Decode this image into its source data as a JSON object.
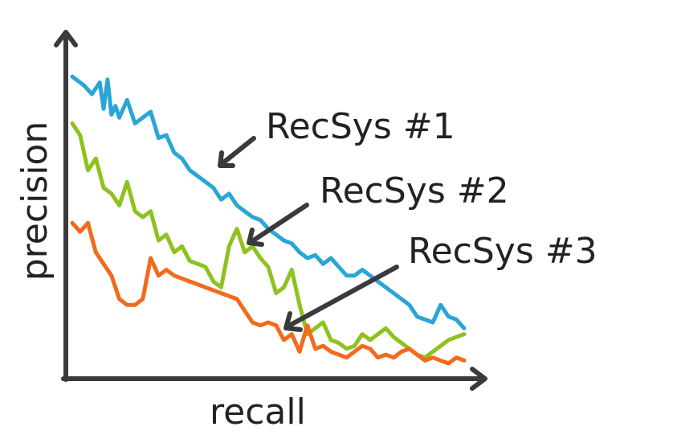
{
  "chart_data": {
    "type": "line",
    "title": "",
    "xlabel": "recall",
    "ylabel": "precision",
    "xlim": [
      0,
      100
    ],
    "ylim": [
      0,
      100
    ],
    "grid": false,
    "axis_ticks": false,
    "series": [
      {
        "name": "RecSys #1",
        "color": "#2aa6d6",
        "x": [
          0,
          3,
          5,
          7,
          8,
          9,
          10,
          11,
          12,
          14,
          16,
          18,
          20,
          22,
          24,
          26,
          28,
          30,
          32,
          34,
          36,
          38,
          40,
          42,
          44,
          46,
          48,
          50,
          52,
          54,
          56,
          58,
          60,
          62,
          64,
          66,
          68,
          70,
          72,
          74,
          76,
          78,
          80,
          82,
          84,
          86,
          88,
          90,
          92,
          94,
          96,
          98,
          100
        ],
        "y": [
          98,
          95,
          92,
          96,
          87,
          97,
          85,
          88,
          84,
          90,
          82,
          84,
          86,
          77,
          78,
          72,
          70,
          66,
          64,
          62,
          60,
          56,
          58,
          54,
          52,
          50,
          49,
          46,
          44,
          42,
          41,
          38,
          36,
          37,
          34,
          36,
          33,
          30,
          30,
          32,
          30,
          28,
          26,
          24,
          22,
          20,
          16,
          15,
          14,
          20,
          16,
          15,
          12
        ]
      },
      {
        "name": "RecSys #2",
        "color": "#8dc21f",
        "x": [
          0,
          2,
          4,
          6,
          8,
          10,
          12,
          14,
          16,
          18,
          20,
          22,
          24,
          26,
          28,
          30,
          32,
          34,
          36,
          38,
          40,
          42,
          44,
          46,
          48,
          50,
          52,
          54,
          56,
          58,
          60,
          62,
          64,
          66,
          68,
          70,
          72,
          74,
          76,
          78,
          80,
          82,
          84,
          86,
          88,
          90,
          92,
          94,
          96,
          98,
          100
        ],
        "y": [
          82,
          78,
          66,
          70,
          60,
          58,
          54,
          62,
          52,
          50,
          52,
          42,
          44,
          38,
          40,
          35,
          34,
          33,
          28,
          26,
          40,
          46,
          38,
          40,
          36,
          33,
          24,
          26,
          32,
          20,
          10,
          12,
          14,
          8,
          7,
          5,
          6,
          10,
          8,
          10,
          12,
          9,
          7,
          5,
          3,
          2,
          4,
          6,
          8,
          9,
          10
        ]
      },
      {
        "name": "RecSys #3",
        "color": "#f26b1d",
        "x": [
          0,
          2,
          4,
          6,
          8,
          10,
          12,
          14,
          16,
          18,
          20,
          22,
          24,
          26,
          28,
          30,
          32,
          34,
          36,
          38,
          40,
          42,
          44,
          46,
          48,
          50,
          52,
          54,
          56,
          58,
          60,
          62,
          64,
          66,
          68,
          70,
          72,
          74,
          76,
          78,
          80,
          82,
          84,
          86,
          88,
          90,
          92,
          94,
          96,
          98,
          100
        ],
        "y": [
          48,
          45,
          48,
          38,
          34,
          30,
          22,
          20,
          20,
          22,
          36,
          30,
          32,
          30,
          29,
          28,
          27,
          26,
          25,
          24,
          23,
          22,
          18,
          14,
          13,
          14,
          13,
          8,
          10,
          4,
          13,
          5,
          6,
          4,
          3,
          2,
          4,
          6,
          5,
          2,
          3,
          2,
          4,
          5,
          3,
          1,
          2,
          1,
          0,
          2,
          1
        ]
      }
    ],
    "annotations": [
      {
        "text": "RecSys #1",
        "points_to_series": 0
      },
      {
        "text": "RecSys #2",
        "points_to_series": 1
      },
      {
        "text": "RecSys #3",
        "points_to_series": 2
      }
    ],
    "axis_color": "#3a3a3a"
  }
}
